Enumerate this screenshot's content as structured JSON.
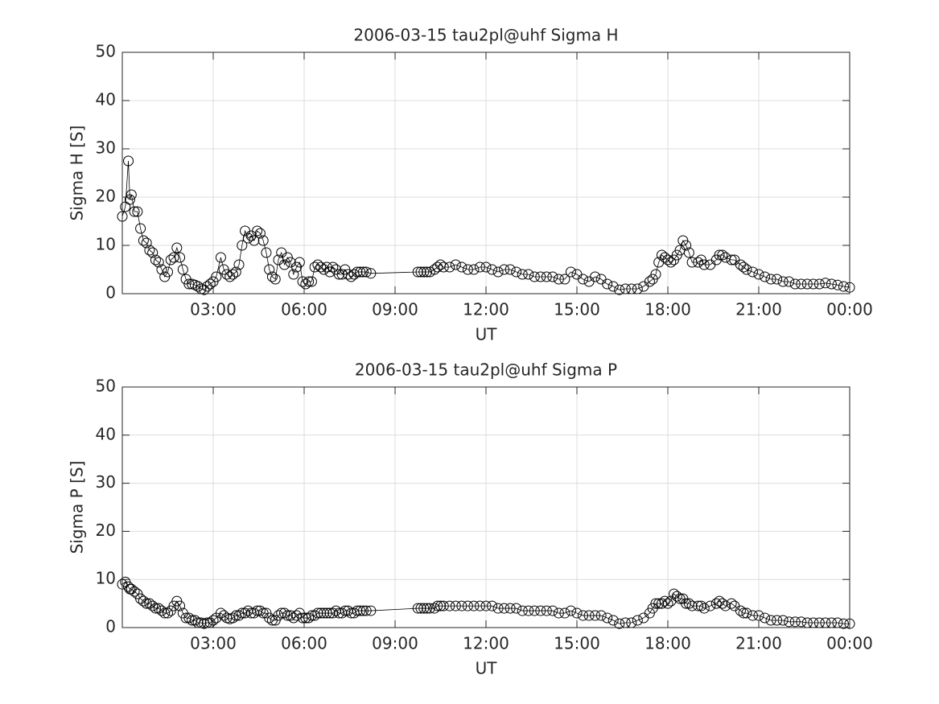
{
  "chart_data": [
    {
      "type": "line",
      "title": "2006-03-15  tau2pl@uhf Sigma H",
      "xlabel": "UT",
      "ylabel": "Sigma H [S]",
      "x": [
        0,
        0.1,
        0.2,
        0.25,
        0.3,
        0.4,
        0.5,
        0.6,
        0.7,
        0.8,
        0.9,
        1.0,
        1.1,
        1.2,
        1.3,
        1.4,
        1.5,
        1.6,
        1.7,
        1.8,
        1.9,
        2.0,
        2.1,
        2.2,
        2.3,
        2.4,
        2.5,
        2.6,
        2.7,
        2.8,
        2.9,
        3.0,
        3.1,
        3.25,
        3.35,
        3.45,
        3.55,
        3.65,
        3.75,
        3.85,
        3.95,
        4.05,
        4.15,
        4.25,
        4.35,
        4.45,
        4.55,
        4.65,
        4.75,
        4.85,
        4.95,
        5.05,
        5.15,
        5.25,
        5.35,
        5.45,
        5.55,
        5.65,
        5.75,
        5.85,
        5.95,
        6.05,
        6.15,
        6.25,
        6.35,
        6.45,
        6.55,
        6.65,
        6.75,
        6.85,
        6.95,
        7.05,
        7.15,
        7.25,
        7.35,
        7.45,
        7.55,
        7.65,
        7.75,
        7.85,
        7.95,
        8.05,
        8.2,
        9.75,
        9.85,
        9.95,
        10.05,
        10.15,
        10.3,
        10.4,
        10.5,
        10.6,
        10.8,
        11.0,
        11.2,
        11.4,
        11.6,
        11.8,
        12.0,
        12.2,
        12.4,
        12.6,
        12.8,
        13.0,
        13.2,
        13.4,
        13.6,
        13.8,
        14.0,
        14.2,
        14.4,
        14.6,
        14.8,
        15.0,
        15.2,
        15.4,
        15.6,
        15.8,
        16.0,
        16.2,
        16.4,
        16.6,
        16.8,
        17.0,
        17.2,
        17.4,
        17.5,
        17.6,
        17.7,
        17.8,
        17.9,
        18.0,
        18.1,
        18.2,
        18.3,
        18.4,
        18.5,
        18.6,
        18.7,
        18.8,
        19.0,
        19.1,
        19.2,
        19.4,
        19.6,
        19.7,
        19.8,
        19.9,
        20.1,
        20.2,
        20.4,
        20.5,
        20.6,
        20.8,
        21.0,
        21.2,
        21.4,
        21.6,
        21.8,
        22.0,
        22.2,
        22.4,
        22.6,
        22.8,
        23.0,
        23.2,
        23.4,
        23.6,
        23.8,
        24.0
      ],
      "series": [
        {
          "color": "#000000",
          "marker": "circle",
          "values": [
            16,
            18,
            27.5,
            19.5,
            20.5,
            17,
            17,
            13.5,
            11,
            10.5,
            9,
            8.5,
            7,
            6.5,
            5,
            3.5,
            4.5,
            7,
            7.5,
            9.5,
            7.5,
            5,
            3,
            2,
            2,
            1.8,
            1.5,
            1,
            0.8,
            1.5,
            2,
            2.5,
            3.5,
            7.5,
            5,
            4,
            3.5,
            4,
            4.5,
            6,
            10,
            13,
            11.5,
            12,
            11,
            13,
            12.5,
            11,
            8.5,
            5,
            3.5,
            3,
            7,
            8.5,
            6,
            7.5,
            6.5,
            4,
            5.5,
            6.5,
            2.5,
            2,
            2.5,
            2.5,
            5.5,
            6,
            5.5,
            5,
            5.5,
            4.5,
            5.5,
            5,
            4,
            4,
            5,
            4,
            3.5,
            4,
            4.5,
            4.5,
            4.5,
            4.5,
            4.2,
            4.5,
            4.5,
            4.5,
            4.5,
            4.5,
            5,
            5.5,
            6,
            5.5,
            5.5,
            6,
            5.5,
            5,
            5,
            5.5,
            5.5,
            5,
            4.5,
            5,
            5,
            4.5,
            4,
            4,
            3.5,
            3.5,
            3.5,
            3.5,
            3,
            3,
            4.5,
            4,
            3,
            2.5,
            3.5,
            3,
            2,
            1.5,
            0.8,
            1,
            1,
            1,
            1.5,
            2.5,
            3,
            4,
            6.5,
            8,
            7.5,
            7,
            6.5,
            7,
            8,
            9,
            11,
            10,
            8.5,
            6.5,
            6.5,
            7,
            6,
            6,
            7,
            8,
            8,
            7.5,
            7,
            7,
            6,
            5.5,
            5,
            4.5,
            4,
            3.5,
            3,
            3,
            2.5,
            2.5,
            2,
            2,
            2,
            2,
            2,
            2.2,
            2,
            1.8,
            1.5,
            1.3
          ]
        }
      ],
      "xlim": [
        0,
        24
      ],
      "xticks": [
        {
          "value": 3,
          "label": "03:00"
        },
        {
          "value": 6,
          "label": "06:00"
        },
        {
          "value": 9,
          "label": "09:00"
        },
        {
          "value": 12,
          "label": "12:00"
        },
        {
          "value": 15,
          "label": "15:00"
        },
        {
          "value": 18,
          "label": "18:00"
        },
        {
          "value": 21,
          "label": "21:00"
        },
        {
          "value": 24,
          "label": "00:00"
        }
      ],
      "ylim": [
        0,
        50
      ],
      "yticks": [
        0,
        10,
        20,
        30,
        40,
        50
      ],
      "grid": true
    },
    {
      "type": "line",
      "title": "2006-03-15  tau2pl@uhf Sigma P",
      "xlabel": "UT",
      "ylabel": "Sigma P [S]",
      "x": [
        0,
        0.1,
        0.2,
        0.25,
        0.3,
        0.4,
        0.5,
        0.6,
        0.7,
        0.8,
        0.9,
        1.0,
        1.1,
        1.2,
        1.3,
        1.4,
        1.5,
        1.6,
        1.7,
        1.8,
        1.9,
        2.0,
        2.1,
        2.2,
        2.3,
        2.4,
        2.5,
        2.6,
        2.7,
        2.8,
        2.9,
        3.0,
        3.1,
        3.25,
        3.35,
        3.45,
        3.55,
        3.65,
        3.75,
        3.85,
        3.95,
        4.05,
        4.15,
        4.25,
        4.35,
        4.45,
        4.55,
        4.65,
        4.75,
        4.85,
        4.95,
        5.05,
        5.15,
        5.25,
        5.35,
        5.45,
        5.55,
        5.65,
        5.75,
        5.85,
        5.95,
        6.05,
        6.15,
        6.25,
        6.35,
        6.45,
        6.55,
        6.65,
        6.75,
        6.85,
        6.95,
        7.05,
        7.15,
        7.25,
        7.35,
        7.45,
        7.55,
        7.65,
        7.75,
        7.85,
        7.95,
        8.05,
        8.2,
        9.75,
        9.85,
        9.95,
        10.05,
        10.15,
        10.3,
        10.4,
        10.5,
        10.6,
        10.8,
        11.0,
        11.2,
        11.4,
        11.6,
        11.8,
        12.0,
        12.2,
        12.4,
        12.6,
        12.8,
        13.0,
        13.2,
        13.4,
        13.6,
        13.8,
        14.0,
        14.2,
        14.4,
        14.6,
        14.8,
        15.0,
        15.2,
        15.4,
        15.6,
        15.8,
        16.0,
        16.2,
        16.4,
        16.6,
        16.8,
        17.0,
        17.2,
        17.4,
        17.5,
        17.6,
        17.7,
        17.8,
        17.9,
        18.0,
        18.1,
        18.2,
        18.3,
        18.4,
        18.5,
        18.6,
        18.7,
        18.8,
        19.0,
        19.1,
        19.2,
        19.4,
        19.6,
        19.7,
        19.8,
        19.9,
        20.1,
        20.2,
        20.4,
        20.5,
        20.6,
        20.8,
        21.0,
        21.2,
        21.4,
        21.6,
        21.8,
        22.0,
        22.2,
        22.4,
        22.6,
        22.8,
        23.0,
        23.2,
        23.4,
        23.6,
        23.8,
        24.0
      ],
      "series": [
        {
          "color": "#000000",
          "marker": "circle",
          "values": [
            9,
            9.5,
            8.5,
            8,
            8,
            7.5,
            7,
            6,
            5.5,
            5,
            5,
            4.5,
            4,
            4,
            3.5,
            3,
            3,
            3.5,
            4.5,
            5.5,
            4.5,
            3,
            2,
            2,
            1.5,
            1.5,
            1,
            1,
            0.8,
            1,
            1,
            1.5,
            2,
            3,
            2.5,
            2,
            1.8,
            2,
            2.5,
            2.5,
            3,
            3,
            3.5,
            3,
            3,
            3.5,
            3.5,
            3,
            3,
            2,
            1.5,
            1.5,
            2.5,
            3,
            3,
            2.5,
            2.5,
            2,
            2.5,
            3,
            2,
            2,
            2,
            2.5,
            2.5,
            3,
            3,
            3,
            3,
            3,
            3,
            3.5,
            3,
            3,
            3.5,
            3.5,
            3,
            3,
            3.5,
            3.5,
            3.5,
            3.5,
            3.5,
            4,
            4,
            4,
            4,
            4,
            4,
            4.5,
            4.5,
            4.5,
            4.5,
            4.5,
            4.5,
            4.5,
            4.5,
            4.5,
            4.5,
            4.5,
            4,
            4,
            4,
            4,
            3.5,
            3.5,
            3.5,
            3.5,
            3.5,
            3.5,
            3,
            3,
            3.5,
            3,
            2.5,
            2.5,
            2.5,
            2.5,
            2,
            1.5,
            0.8,
            1,
            1,
            1.5,
            2,
            3,
            4,
            5,
            5,
            5,
            5.5,
            5,
            5.5,
            7,
            6.5,
            6,
            6,
            5,
            5,
            4.5,
            4.5,
            4.5,
            4,
            4.5,
            5,
            5.5,
            5,
            4.5,
            5,
            4.5,
            3.5,
            3,
            3,
            2.5,
            2.5,
            2,
            1.5,
            1.5,
            1.5,
            1.2,
            1.2,
            1.2,
            1,
            1,
            1,
            1,
            1,
            1,
            0.8,
            0.8
          ]
        }
      ],
      "xlim": [
        0,
        24
      ],
      "xticks": [
        {
          "value": 3,
          "label": "03:00"
        },
        {
          "value": 6,
          "label": "06:00"
        },
        {
          "value": 9,
          "label": "09:00"
        },
        {
          "value": 12,
          "label": "12:00"
        },
        {
          "value": 15,
          "label": "15:00"
        },
        {
          "value": 18,
          "label": "18:00"
        },
        {
          "value": 21,
          "label": "21:00"
        },
        {
          "value": 24,
          "label": "00:00"
        }
      ],
      "ylim": [
        0,
        50
      ],
      "yticks": [
        0,
        10,
        20,
        30,
        40,
        50
      ],
      "grid": true
    }
  ]
}
